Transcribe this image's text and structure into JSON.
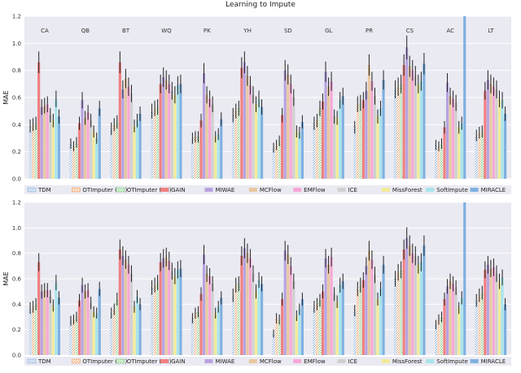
{
  "page_header": "Learning to Impute",
  "chart_data": [
    {
      "type": "bar",
      "ylabel": "MAE",
      "ylim": [
        0,
        1.2
      ],
      "yticks": [
        "0.0",
        "0.2",
        "0.4",
        "0.6",
        "0.8",
        "1.0",
        "1.2"
      ],
      "categories": [
        "CA",
        "QB",
        "BT",
        "WQ",
        "PK",
        "YH",
        "SD",
        "GL",
        "PR",
        "CS",
        "AC",
        "LT"
      ],
      "grid": true,
      "legend_position": "bottom",
      "series": [
        {
          "name": "TDM",
          "color": "#8fb6de",
          "hatch": true,
          "values": [
            0.39,
            0.26,
            0.37,
            0.5,
            0.3,
            0.47,
            0.23,
            0.41,
            0.38,
            0.66,
            0.25,
            0.32
          ]
        },
        {
          "name": "OTImputer (NS)",
          "color": "#f3a56b",
          "hatch": true,
          "values": [
            0.4,
            0.24,
            0.4,
            0.52,
            0.31,
            0.5,
            0.25,
            0.43,
            0.55,
            0.68,
            0.24,
            0.34
          ]
        },
        {
          "name": "OTImputer (SH)",
          "color": "#87cf87",
          "hatch": true,
          "values": [
            0.41,
            0.27,
            0.42,
            0.53,
            0.31,
            0.52,
            0.28,
            0.52,
            0.56,
            0.7,
            0.26,
            0.35
          ]
        },
        {
          "name": "GAIN",
          "color": "#f08080",
          "values": [
            0.86,
            0.41,
            0.86,
            0.7,
            0.43,
            0.82,
            0.47,
            0.57,
            0.58,
            0.84,
            0.38,
            0.65
          ]
        },
        {
          "name": "MIWAE",
          "color": "#b7a3e0",
          "values": [
            0.53,
            0.58,
            0.66,
            0.75,
            0.78,
            0.86,
            0.8,
            0.79,
            0.65,
            0.97,
            0.71,
            0.73
          ]
        },
        {
          "name": "MCFlow",
          "color": "#e8c8a0",
          "values": [
            0.54,
            0.45,
            0.74,
            0.73,
            0.62,
            0.76,
            0.77,
            0.68,
            0.84,
            0.83,
            0.61,
            0.7
          ]
        },
        {
          "name": "EMFlow",
          "color": "#f6a8d6",
          "values": [
            0.55,
            0.49,
            0.68,
            0.7,
            0.59,
            0.69,
            0.7,
            0.72,
            0.72,
            0.8,
            0.59,
            0.68
          ]
        },
        {
          "name": "ICE",
          "color": "#d0d0d0",
          "values": [
            0.47,
            0.43,
            0.63,
            0.65,
            0.55,
            0.62,
            0.6,
            0.46,
            0.61,
            0.76,
            0.56,
            0.66
          ]
        },
        {
          "name": "MissForest",
          "color": "#f3eb98",
          "values": [
            0.43,
            0.35,
            0.39,
            0.62,
            0.31,
            0.55,
            0.35,
            0.45,
            0.46,
            0.7,
            0.38,
            0.59
          ]
        },
        {
          "name": "SoftImpute",
          "color": "#a8e4ec",
          "values": [
            0.59,
            0.3,
            0.43,
            0.69,
            0.33,
            0.59,
            0.34,
            0.58,
            0.52,
            0.72,
            0.41,
            0.58
          ]
        },
        {
          "name": "MIRACLE",
          "color": "#7fb0e0",
          "values": [
            0.46,
            0.52,
            0.48,
            0.7,
            0.44,
            0.53,
            0.42,
            0.61,
            0.73,
            0.85,
            1.2,
            0.48
          ]
        }
      ]
    },
    {
      "type": "bar",
      "ylabel": "MAE",
      "ylim": [
        0,
        1.2
      ],
      "yticks": [
        "0.0",
        "0.2",
        "0.4",
        "0.6",
        "0.8",
        "1.0",
        "1.2"
      ],
      "categories": [
        "CA",
        "QB",
        "BT",
        "WQ",
        "PK",
        "YH",
        "SD",
        "GL",
        "PR",
        "CS",
        "AC",
        "LT"
      ],
      "grid": true,
      "legend_position": "bottom",
      "series": [
        {
          "name": "TDM",
          "color": "#8fb6de",
          "hatch": true,
          "values": [
            0.37,
            0.27,
            0.33,
            0.53,
            0.29,
            0.47,
            0.17,
            0.38,
            0.35,
            0.6,
            0.24,
            0.43
          ]
        },
        {
          "name": "OTImputer (NS)",
          "color": "#f3a56b",
          "hatch": true,
          "values": [
            0.38,
            0.28,
            0.36,
            0.55,
            0.33,
            0.55,
            0.29,
            0.4,
            0.52,
            0.65,
            0.28,
            0.47
          ]
        },
        {
          "name": "OTImputer (SH)",
          "color": "#87cf87",
          "hatch": true,
          "values": [
            0.4,
            0.3,
            0.44,
            0.57,
            0.34,
            0.56,
            0.28,
            0.43,
            0.55,
            0.67,
            0.3,
            0.49
          ]
        },
        {
          "name": "GAIN",
          "color": "#f08080",
          "values": [
            0.73,
            0.43,
            0.83,
            0.73,
            0.48,
            0.78,
            0.44,
            0.5,
            0.59,
            0.83,
            0.44,
            0.67
          ]
        },
        {
          "name": "MIWAE",
          "color": "#b7a3e0",
          "values": [
            0.5,
            0.55,
            0.78,
            0.76,
            0.79,
            0.84,
            0.82,
            0.76,
            0.7,
            0.92,
            0.54,
            0.71
          ]
        },
        {
          "name": "MCFlow",
          "color": "#e8c8a0",
          "values": [
            0.51,
            0.5,
            0.75,
            0.77,
            0.64,
            0.8,
            0.79,
            0.71,
            0.82,
            0.86,
            0.58,
            0.68
          ]
        },
        {
          "name": "EMFlow",
          "color": "#f6a8d6",
          "values": [
            0.51,
            0.51,
            0.71,
            0.74,
            0.62,
            0.76,
            0.7,
            0.77,
            0.75,
            0.8,
            0.56,
            0.69
          ]
        },
        {
          "name": "ICE",
          "color": "#d0d0d0",
          "values": [
            0.46,
            0.41,
            0.64,
            0.66,
            0.56,
            0.64,
            0.58,
            0.48,
            0.63,
            0.78,
            0.53,
            0.64
          ]
        },
        {
          "name": "MissForest",
          "color": "#f3eb98",
          "values": [
            0.39,
            0.34,
            0.38,
            0.62,
            0.33,
            0.5,
            0.31,
            0.42,
            0.44,
            0.71,
            0.37,
            0.58
          ]
        },
        {
          "name": "SoftImpute",
          "color": "#a8e4ec",
          "values": [
            0.57,
            0.33,
            0.46,
            0.67,
            0.38,
            0.59,
            0.36,
            0.55,
            0.52,
            0.73,
            0.45,
            0.61
          ]
        },
        {
          "name": "MIRACLE",
          "color": "#7fb0e0",
          "values": [
            0.45,
            0.52,
            0.4,
            0.68,
            0.45,
            0.56,
            0.44,
            0.58,
            0.71,
            0.86,
            1.2,
            0.4
          ]
        }
      ]
    }
  ]
}
